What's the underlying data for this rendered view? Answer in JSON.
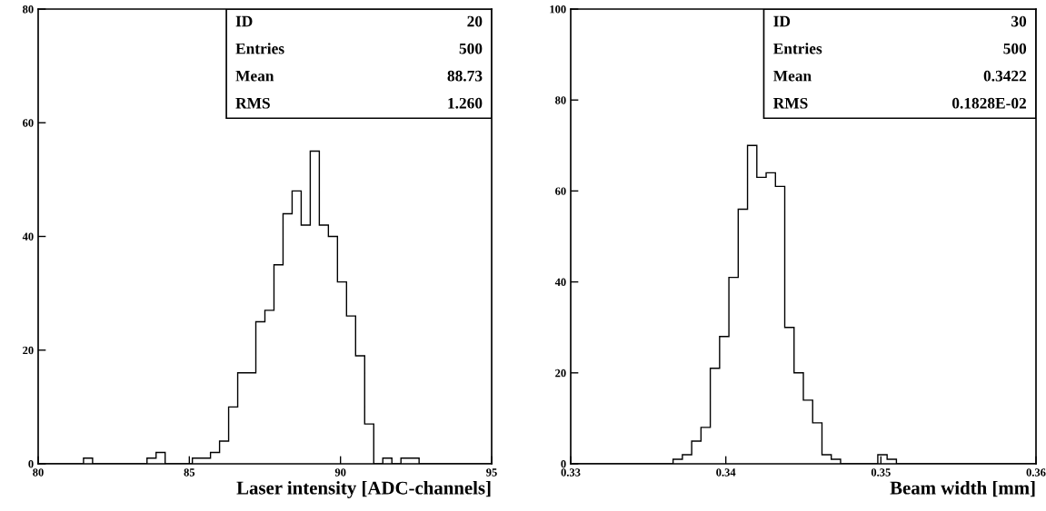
{
  "chart_data": [
    {
      "type": "histogram",
      "xlabel": "Laser intensity [ADC-channels]",
      "color": "#000000",
      "bins": [
        80.0,
        80.3,
        80.6,
        80.9,
        81.2,
        81.5,
        81.8,
        82.1,
        82.4,
        82.7,
        83.0,
        83.3,
        83.6,
        83.9,
        84.2,
        84.5,
        84.8,
        85.1,
        85.4,
        85.7,
        86.0,
        86.3,
        86.6,
        86.9,
        87.2,
        87.5,
        87.8,
        88.1,
        88.4,
        88.7,
        89.0,
        89.3,
        89.6,
        89.9,
        90.2,
        90.5,
        90.8,
        91.1,
        91.4,
        91.7,
        92.0,
        92.3,
        92.6,
        92.9,
        93.2,
        93.5,
        93.8,
        94.1,
        94.4,
        94.7,
        95.0
      ],
      "values": [
        0,
        0,
        0,
        0,
        0,
        1,
        0,
        0,
        0,
        0,
        0,
        0,
        1,
        2,
        0,
        0,
        0,
        1,
        1,
        2,
        4,
        10,
        16,
        16,
        25,
        27,
        35,
        44,
        48,
        42,
        55,
        42,
        40,
        32,
        26,
        19,
        7,
        0,
        1,
        0,
        1,
        1,
        0,
        0,
        0,
        0,
        0,
        0,
        0,
        0
      ],
      "xlim": [
        80,
        95
      ],
      "xticks": [
        80,
        85,
        90,
        95
      ],
      "ylim": [
        0,
        80
      ],
      "yticks": [
        0,
        20,
        40,
        60,
        80
      ],
      "grid": false,
      "annotations": [
        "ID",
        "20",
        "Entries",
        "500",
        "Mean",
        "88.73",
        "RMS",
        "1.260"
      ]
    },
    {
      "type": "histogram",
      "xlabel": "Beam width [mm]",
      "color": "#000000",
      "bins": [
        0.33,
        0.3306,
        0.3312,
        0.3318,
        0.3324,
        0.333,
        0.3336,
        0.3342,
        0.3348,
        0.3354,
        0.336,
        0.3366,
        0.3372,
        0.3378,
        0.3384,
        0.339,
        0.3396,
        0.3402,
        0.3408,
        0.3414,
        0.342,
        0.3426,
        0.3432,
        0.3438,
        0.3444,
        0.345,
        0.3456,
        0.3462,
        0.3468,
        0.3474,
        0.348,
        0.3486,
        0.3492,
        0.3498,
        0.3504,
        0.351,
        0.3516,
        0.3522,
        0.3528,
        0.3534,
        0.354,
        0.3546,
        0.3552,
        0.3558,
        0.3564,
        0.357,
        0.3576,
        0.3582,
        0.3588,
        0.3594,
        0.36
      ],
      "values": [
        0,
        0,
        0,
        0,
        0,
        0,
        0,
        0,
        0,
        0,
        0,
        1,
        2,
        5,
        8,
        21,
        28,
        41,
        56,
        70,
        63,
        64,
        61,
        30,
        20,
        14,
        9,
        2,
        1,
        0,
        0,
        0,
        0,
        2,
        1,
        0,
        0,
        0,
        0,
        0,
        0,
        0,
        0,
        0,
        0,
        0,
        0,
        0,
        0,
        0
      ],
      "xlim": [
        0.33,
        0.36
      ],
      "xticks": [
        0.33,
        0.34,
        0.35,
        0.36
      ],
      "ylim": [
        0,
        100
      ],
      "yticks": [
        0,
        20,
        40,
        60,
        80,
        100
      ],
      "grid": false,
      "annotations": [
        "ID",
        "30",
        "Entries",
        "500",
        "Mean",
        "0.3422",
        "RMS",
        "0.1828E-02"
      ]
    }
  ]
}
